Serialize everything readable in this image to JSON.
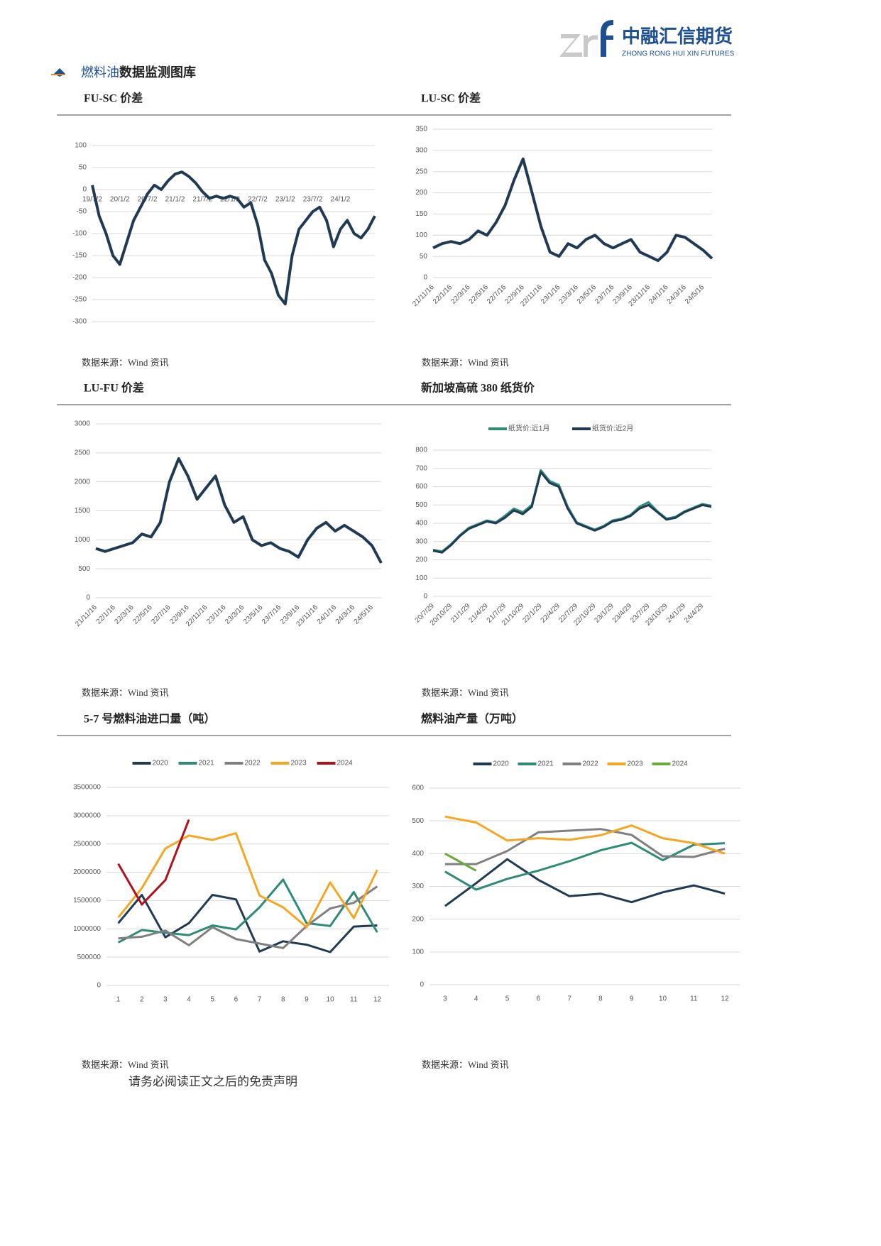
{
  "header": {
    "company": "中融汇信期货",
    "company_en": "ZHONG RONG HUI XIN FUTURES"
  },
  "section_title": {
    "highlight": "燃料油",
    "rest": "数据监测图库"
  },
  "footer": "请务必阅读正文之后的免责声明",
  "chart_data": [
    {
      "type": "line",
      "title": "FU-SC 价差",
      "source": "数据来源：Wind 资讯",
      "color": "#1f3a52",
      "grid": true,
      "categories": [
        "19/7/2",
        null,
        null,
        null,
        "20/1/2",
        null,
        null,
        null,
        "20/7/2",
        null,
        null,
        null,
        "21/1/2",
        null,
        null,
        null,
        "21/7/2",
        null,
        null,
        null,
        "22/1/2",
        null,
        null,
        null,
        "22/7/2",
        null,
        null,
        null,
        "23/1/2",
        null,
        null,
        null,
        "23/7/2",
        null,
        null,
        null,
        "24/1/2",
        null,
        null,
        null,
        null,
        null
      ],
      "values": [
        10,
        -60,
        -100,
        -150,
        -170,
        -120,
        -70,
        -40,
        -10,
        10,
        0,
        20,
        35,
        40,
        30,
        15,
        -5,
        -20,
        -15,
        -20,
        -15,
        -20,
        -40,
        -30,
        -80,
        -160,
        -190,
        -240,
        -260,
        -150,
        -90,
        -70,
        -50,
        -40,
        -70,
        -130,
        -90,
        -70,
        -100,
        -110,
        -90,
        -60
      ],
      "ylim": [
        -300,
        100
      ],
      "yticks": [
        -300,
        -250,
        -200,
        -150,
        -100,
        -50,
        0,
        50,
        100
      ]
    },
    {
      "type": "line",
      "title": "LU-SC 价差",
      "source": "数据来源：Wind 资讯",
      "color": "#1f3a52",
      "grid": true,
      "categories": [
        "21/11/16",
        null,
        "22/1/16",
        null,
        "22/3/16",
        null,
        "22/5/16",
        null,
        "22/7/16",
        null,
        "22/9/16",
        null,
        "22/11/16",
        null,
        "23/1/16",
        null,
        "23/3/16",
        null,
        "23/5/16",
        null,
        "23/7/16",
        null,
        "23/9/16",
        null,
        "23/11/16",
        null,
        "24/1/16",
        null,
        "24/3/16",
        null,
        "24/5/16",
        null
      ],
      "values": [
        70,
        80,
        85,
        80,
        90,
        110,
        100,
        130,
        170,
        230,
        280,
        200,
        120,
        60,
        50,
        80,
        70,
        90,
        100,
        80,
        70,
        80,
        90,
        60,
        50,
        40,
        60,
        100,
        95,
        80,
        65,
        45
      ],
      "ylim": [
        0,
        350
      ],
      "yticks": [
        0,
        50,
        100,
        150,
        200,
        250,
        300,
        350
      ]
    },
    {
      "type": "line",
      "title": "LU-FU 价差",
      "source": "数据来源：Wind 资讯",
      "color": "#1f3a52",
      "grid": true,
      "categories": [
        "21/11/16",
        null,
        "22/1/16",
        null,
        "22/3/16",
        null,
        "22/5/16",
        null,
        "22/7/16",
        null,
        "22/9/16",
        null,
        "22/11/16",
        null,
        "23/1/16",
        null,
        "23/3/16",
        null,
        "23/5/16",
        null,
        "23/7/16",
        null,
        "23/9/16",
        null,
        "23/11/16",
        null,
        "24/1/16",
        null,
        "24/3/16",
        null,
        "24/5/16",
        null
      ],
      "values": [
        850,
        800,
        850,
        900,
        950,
        1100,
        1050,
        1300,
        2000,
        2400,
        2100,
        1700,
        1900,
        2100,
        1600,
        1300,
        1400,
        1000,
        900,
        950,
        850,
        800,
        700,
        1000,
        1200,
        1300,
        1150,
        1250,
        1150,
        1050,
        900,
        600
      ],
      "ylim": [
        0,
        3000
      ],
      "yticks": [
        0,
        500,
        1000,
        1500,
        2000,
        2500,
        3000
      ]
    },
    {
      "type": "line",
      "title": "新加坡高硫 380 纸货价",
      "source": "数据来源：Wind 资讯",
      "grid": true,
      "categories": [
        "20/7/29",
        null,
        "20/10/29",
        null,
        "21/1/29",
        null,
        "21/4/29",
        null,
        "21/7/29",
        null,
        "21/10/29",
        null,
        "22/1/29",
        null,
        "22/4/29",
        null,
        "22/7/29",
        null,
        "22/10/29",
        null,
        "23/1/29",
        null,
        "23/4/29",
        null,
        "23/7/29",
        null,
        "23/10/29",
        null,
        "24/1/29",
        null,
        "24/4/29",
        null
      ],
      "series": [
        {
          "name": "纸货价:近1月",
          "color": "#2e8b77",
          "values": [
            255,
            245,
            285,
            335,
            375,
            395,
            415,
            405,
            440,
            480,
            460,
            500,
            690,
            630,
            610,
            490,
            405,
            385,
            365,
            385,
            415,
            425,
            445,
            490,
            515,
            465,
            425,
            435,
            465,
            485,
            505,
            495
          ]
        },
        {
          "name": "纸货价:近2月",
          "color": "#1f3a52",
          "values": [
            250,
            240,
            280,
            330,
            370,
            390,
            410,
            400,
            430,
            470,
            450,
            490,
            680,
            620,
            600,
            480,
            400,
            380,
            360,
            380,
            410,
            420,
            440,
            480,
            500,
            460,
            420,
            430,
            460,
            480,
            500,
            490
          ]
        }
      ],
      "ylim": [
        0,
        800
      ],
      "yticks": [
        0,
        100,
        200,
        300,
        400,
        500,
        600,
        700,
        800
      ]
    },
    {
      "type": "line",
      "title": "5-7 号燃料油进口量（吨）",
      "source": "数据来源：Wind 资讯",
      "grid": true,
      "categories": [
        1,
        2,
        3,
        4,
        5,
        6,
        7,
        8,
        9,
        10,
        11,
        12
      ],
      "series": [
        {
          "name": "2020",
          "color": "#1f3a52",
          "values": [
            1100000,
            1600000,
            850000,
            1100000,
            1600000,
            1520000,
            600000,
            780000,
            720000,
            590000,
            1040000,
            1060000
          ]
        },
        {
          "name": "2021",
          "color": "#2e8b77",
          "values": [
            760000,
            980000,
            930000,
            890000,
            1060000,
            990000,
            1380000,
            1870000,
            1100000,
            1050000,
            1650000,
            940000
          ]
        },
        {
          "name": "2022",
          "color": "#808080",
          "values": [
            830000,
            860000,
            970000,
            710000,
            1030000,
            820000,
            740000,
            660000,
            1050000,
            1360000,
            1460000,
            1750000
          ]
        },
        {
          "name": "2023",
          "color": "#f5a623",
          "values": [
            1200000,
            1720000,
            2420000,
            2650000,
            2570000,
            2690000,
            1590000,
            1380000,
            1030000,
            1820000,
            1190000,
            2040000
          ]
        },
        {
          "name": "2024",
          "color": "#b0121b",
          "values": [
            2150000,
            1430000,
            1860000,
            2930000,
            null,
            null,
            null,
            null,
            null,
            null,
            null,
            null
          ]
        }
      ],
      "ylim": [
        0,
        3500000
      ],
      "yticks": [
        0,
        500000,
        1000000,
        1500000,
        2000000,
        2500000,
        3000000,
        3500000
      ]
    },
    {
      "type": "line",
      "title": "燃料油产量（万吨）",
      "source": "数据来源：Wind 资讯",
      "grid": true,
      "categories": [
        3,
        4,
        5,
        6,
        7,
        8,
        9,
        10,
        11,
        12
      ],
      "series": [
        {
          "name": "2020",
          "color": "#1f3a52",
          "values": [
            240,
            310,
            383,
            320,
            270,
            278,
            252,
            282,
            303,
            278
          ]
        },
        {
          "name": "2021",
          "color": "#2e8b77",
          "values": [
            345,
            290,
            323,
            348,
            377,
            410,
            433,
            380,
            427,
            432
          ]
        },
        {
          "name": "2022",
          "color": "#808080",
          "values": [
            368,
            368,
            408,
            465,
            470,
            475,
            457,
            392,
            390,
            415
          ]
        },
        {
          "name": "2023",
          "color": "#f5a623",
          "values": [
            513,
            495,
            440,
            447,
            442,
            456,
            486,
            447,
            432,
            400
          ]
        },
        {
          "name": "2024",
          "color": "#6aaa3a",
          "values": [
            400,
            348,
            null,
            null,
            null,
            null,
            null,
            null,
            null,
            null
          ]
        }
      ],
      "ylim": [
        0,
        600
      ],
      "yticks": [
        0,
        100,
        200,
        300,
        400,
        500,
        600
      ]
    }
  ]
}
